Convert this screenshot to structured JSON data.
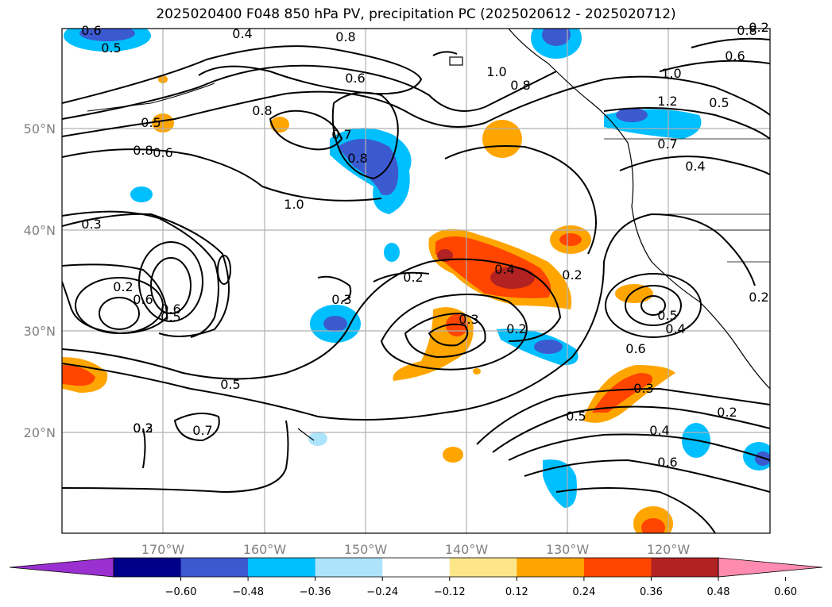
{
  "title": "2025020400 F048 850 hPa PV, precipitation PC (2025020612 - 2025020712)",
  "lat_labels": [
    "50°N",
    "40°N",
    "30°N",
    "20°N"
  ],
  "lon_labels": [
    "170°W",
    "160°W",
    "150°W",
    "140°W",
    "130°W",
    "120°W"
  ],
  "colorbar": {
    "ticks": [
      "−0.60",
      "−0.48",
      "−0.36",
      "−0.24",
      "−0.12",
      "0.12",
      "0.24",
      "0.36",
      "0.48",
      "0.60"
    ],
    "colors": [
      "#9b30d0",
      "#00008b",
      "#3c5ad0",
      "#00bfff",
      "#ade3fb",
      "#ffffff",
      "#fde68a",
      "#ffa500",
      "#ff4500",
      "#b22222",
      "#ff8cb0"
    ]
  },
  "contour_labels": [
    "0.6",
    "0.4",
    "0.8",
    "0.5",
    "0.6",
    "1.0",
    "0.8",
    "1.0",
    "0.8",
    "0.6",
    "1.2",
    "0.8",
    "0.5",
    "0.8",
    "0.5",
    "0.6",
    "0.7",
    "0.8",
    "1.0",
    "0.7",
    "0.4",
    "0.3",
    "0.2",
    "0.6",
    "0.6",
    "0.5",
    "0.3",
    "0.4",
    "0.2",
    "0.2",
    "0.3",
    "0.2",
    "0.5",
    "0.4",
    "0.6",
    "0.5",
    "0.3",
    "0.5",
    "0.4",
    "0.2",
    "0.2",
    "0.6",
    "0.7",
    "0.2",
    "0.3",
    "0.2"
  ]
}
